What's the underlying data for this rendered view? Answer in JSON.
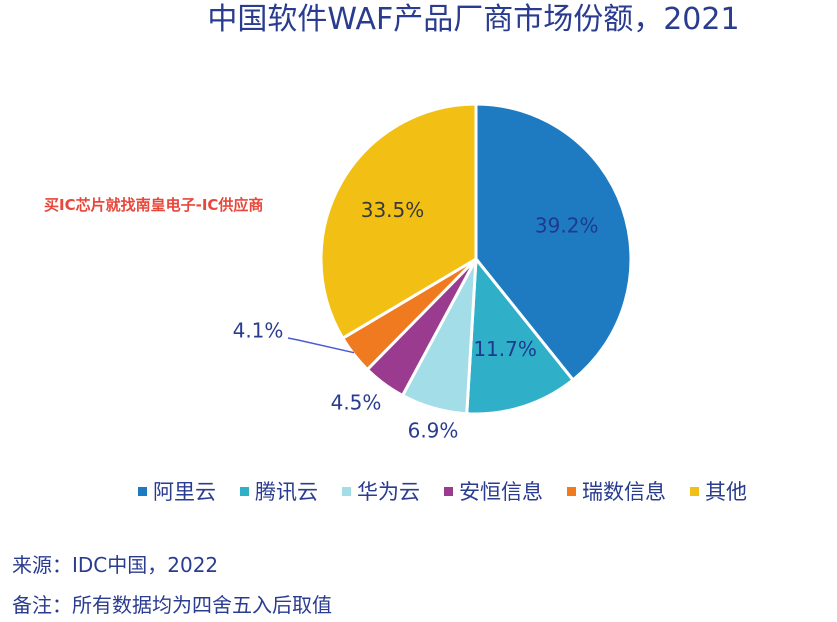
{
  "title": "中国软件WAF产品厂商市场份额，2021",
  "watermark": "买IC芯片就找南皇电子-IC供应商",
  "chart_data": {
    "type": "pie",
    "title": "中国软件WAF产品厂商市场份额，2021",
    "slices": [
      {
        "label": "阿里云",
        "value": 39.2,
        "display": "39.2%",
        "color": "#1f7bc1"
      },
      {
        "label": "腾讯云",
        "value": 11.7,
        "display": "11.7%",
        "color": "#2fb0c8"
      },
      {
        "label": "华为云",
        "value": 6.9,
        "display": "6.9%",
        "color": "#a2dde8"
      },
      {
        "label": "安恒信息",
        "value": 4.5,
        "display": "4.5%",
        "color": "#9b3b8f"
      },
      {
        "label": "瑞数信息",
        "value": 4.1,
        "display": "4.1%",
        "color": "#f07a1f"
      },
      {
        "label": "其他",
        "value": 33.5,
        "display": "33.5%",
        "color": "#f2c014"
      }
    ],
    "legend_position": "bottom"
  },
  "source": "来源：IDC中国，2022",
  "note": "备注：所有数据均为四舍五入后取值"
}
